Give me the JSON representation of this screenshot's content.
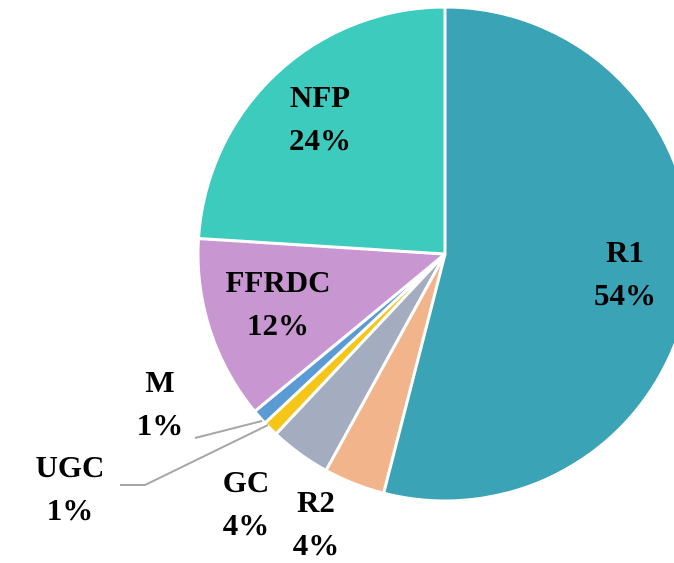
{
  "chart_data": {
    "type": "pie",
    "categories": [
      "R1",
      "R2",
      "GC",
      "UGC",
      "M",
      "FFRDC",
      "NFP"
    ],
    "values": [
      54,
      4,
      4,
      1,
      1,
      12,
      24
    ],
    "value_labels": [
      "54%",
      "4%",
      "4%",
      "1%",
      "1%",
      "12%",
      "24%"
    ],
    "colors": [
      "#3aa3b5",
      "#f2b48a",
      "#a4adc0",
      "#f5c518",
      "#5b9bd5",
      "#c896d0",
      "#3ccbbd"
    ]
  }
}
